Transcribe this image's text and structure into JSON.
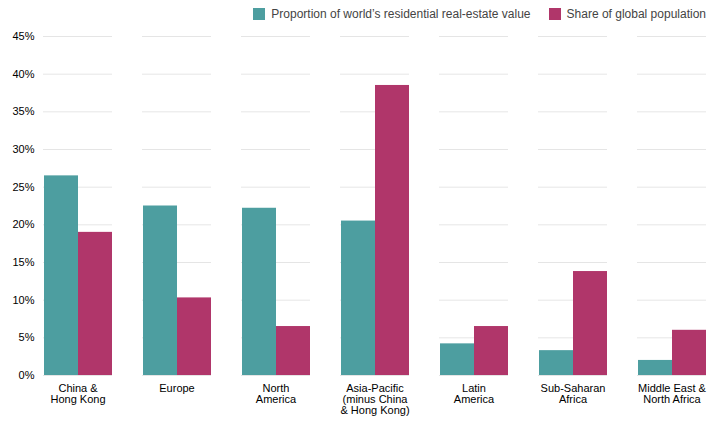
{
  "chart_data": {
    "type": "bar",
    "categories": [
      "China &\nHong Kong",
      "Europe",
      "North\nAmerica",
      "Asia-Pacific\n(minus China\n& Hong Kong)",
      "Latin\nAmerica",
      "Sub-Saharan\nAfrica",
      "Middle East &\nNorth Africa"
    ],
    "series": [
      {
        "name": "Proportion of world’s residential real-estate value",
        "color": "#4d9ea0",
        "values": [
          26.5,
          22.5,
          22.2,
          20.5,
          4.2,
          3.3,
          2.0
        ]
      },
      {
        "name": "Share of global population",
        "color": "#b0366a",
        "values": [
          19.0,
          10.3,
          6.5,
          38.5,
          6.5,
          13.8,
          6.0
        ]
      }
    ],
    "ylim": [
      0,
      45
    ],
    "yticks": [
      {
        "value": 0,
        "label": "0%"
      },
      {
        "value": 5,
        "label": "5%"
      },
      {
        "value": 10,
        "label": "10%"
      },
      {
        "value": 15,
        "label": "15%"
      },
      {
        "value": 20,
        "label": "20%"
      },
      {
        "value": 25,
        "label": "25%"
      },
      {
        "value": 30,
        "label": "30%"
      },
      {
        "value": 35,
        "label": "35%"
      },
      {
        "value": 40,
        "label": "40%"
      },
      {
        "value": 45,
        "label": "45%"
      }
    ],
    "grid": true,
    "legend": "upper right"
  }
}
